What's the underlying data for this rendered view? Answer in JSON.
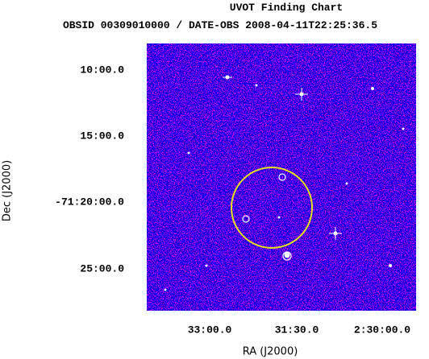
{
  "header": {
    "title": "UVOT Finding Chart",
    "subtitle": "OBSID 00309010000 / DATE-OBS 2008-04-11T22:25:36.5"
  },
  "axes": {
    "x": {
      "label": "RA (J2000)",
      "ticks": [
        "33:00.0",
        "31:30.0",
        "2:30:00.0"
      ]
    },
    "y": {
      "label": "Dec (J2000)",
      "ticks": [
        "10:00.0",
        "15:00.0",
        "-71:20:00.0",
        "25:00.0"
      ]
    }
  }
}
